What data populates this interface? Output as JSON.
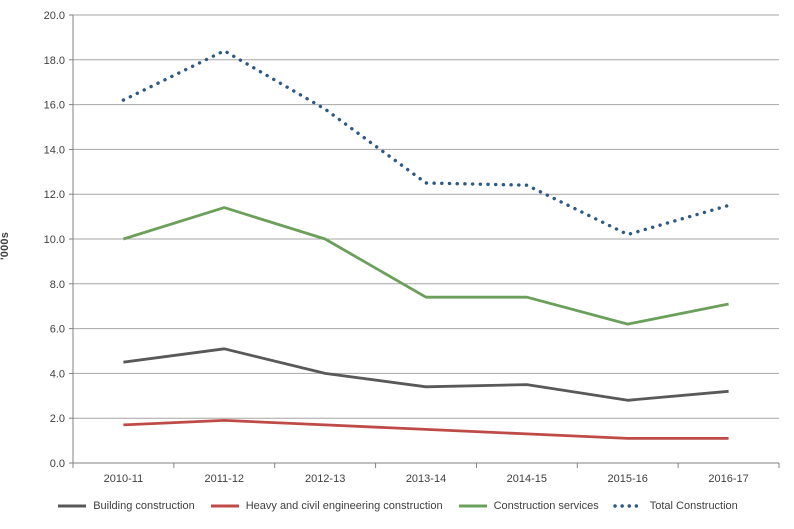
{
  "chart_data": {
    "type": "line",
    "title": "",
    "xlabel": "",
    "ylabel": "'000s",
    "ylim": [
      0,
      20
    ],
    "ytick_step": 2,
    "grid": true,
    "legend_position": "bottom",
    "categories": [
      "2010-11",
      "2011-12",
      "2012-13",
      "2013-14",
      "2014-15",
      "2015-16",
      "2016-17"
    ],
    "series": [
      {
        "name": "Building construction",
        "color": "#595959",
        "style": "solid",
        "values": [
          4.5,
          5.1,
          4.0,
          3.4,
          3.5,
          2.8,
          3.2
        ]
      },
      {
        "name": "Heavy and civil engineering construction",
        "color": "#be4b48",
        "style": "solid",
        "values": [
          1.7,
          1.9,
          1.7,
          1.5,
          1.3,
          1.1,
          1.1
        ]
      },
      {
        "name": "Construction services",
        "color": "#6ba05b",
        "style": "solid",
        "values": [
          10.0,
          11.4,
          10.0,
          7.4,
          7.4,
          6.2,
          7.1
        ]
      },
      {
        "name": "Total Construction",
        "color": "#2c5985",
        "style": "dotted",
        "values": [
          16.2,
          18.4,
          15.8,
          12.5,
          12.4,
          10.2,
          11.5
        ]
      }
    ],
    "colors": {
      "axis": "#808080",
      "grid": "#a6a6a6",
      "text": "#3f3f3f",
      "background": "#ffffff"
    }
  }
}
